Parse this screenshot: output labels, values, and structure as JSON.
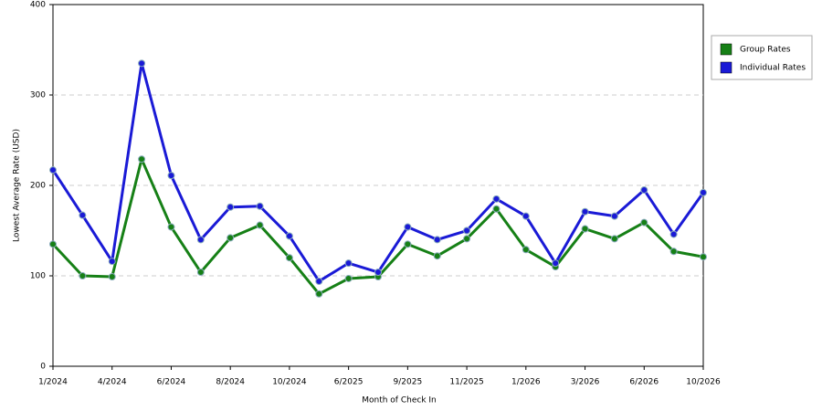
{
  "chart_data": {
    "type": "line",
    "x_label": "Month of Check In",
    "y_label": "Lowest Average Rate (USD)",
    "categories": [
      "1/2024",
      null,
      "4/2024",
      null,
      "6/2024",
      null,
      "8/2024",
      null,
      "10/2024",
      null,
      "6/2025",
      null,
      "9/2025",
      null,
      "11/2025",
      null,
      "1/2026",
      null,
      "3/2026",
      null,
      "6/2026",
      null,
      "10/2026"
    ],
    "series": [
      {
        "name": "Group Rates",
        "color": "#168016",
        "values": [
          135,
          100,
          99,
          229,
          154,
          104,
          142,
          156,
          120,
          80,
          97,
          99,
          135,
          122,
          141,
          174,
          129,
          110,
          152,
          141,
          159,
          127,
          121
        ]
      },
      {
        "name": "Individual Rates",
        "color": "#1a1ad6",
        "values": [
          217,
          167,
          116,
          335,
          211,
          140,
          176,
          177,
          144,
          94,
          114,
          104,
          154,
          140,
          150,
          185,
          166,
          114,
          171,
          166,
          195,
          146,
          192
        ]
      }
    ],
    "ylim": [
      0,
      400
    ],
    "yticks": [
      0,
      100,
      200,
      300,
      400
    ],
    "grid": true,
    "legend": "right"
  }
}
